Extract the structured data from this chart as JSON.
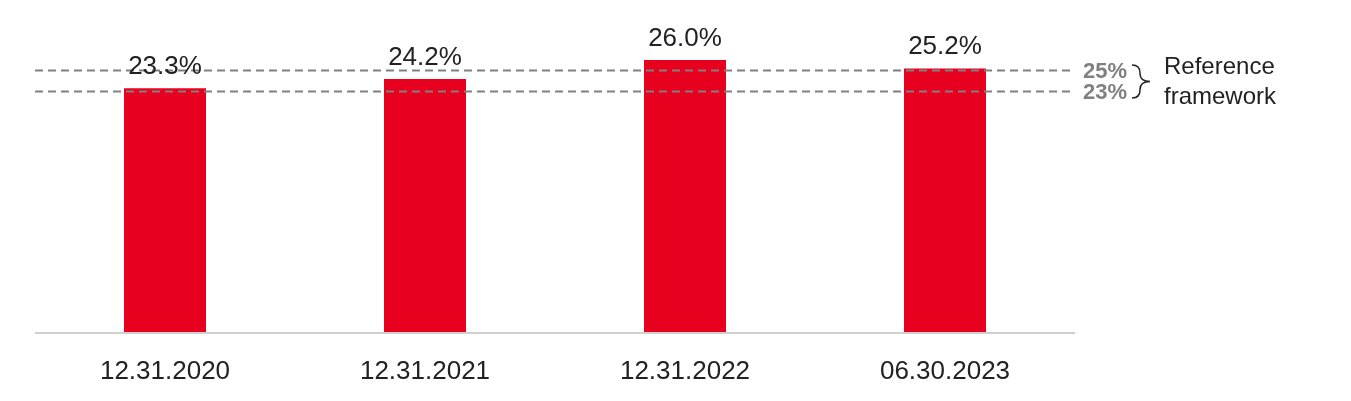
{
  "chart_data": {
    "type": "bar",
    "categories": [
      "12.31.2020",
      "12.31.2021",
      "12.31.2022",
      "06.30.2023"
    ],
    "values": [
      23.3,
      24.2,
      26.0,
      25.2
    ],
    "value_labels": [
      "23.3%",
      "24.2%",
      "26.0%",
      "25.2%"
    ],
    "color": "#e8001f",
    "ref_lines": [
      {
        "axis": "y",
        "value": 25,
        "label": "25%",
        "color": "#808080",
        "line_style": "dashed"
      },
      {
        "axis": "y",
        "value": 23,
        "label": "23%",
        "color": "#808080",
        "line_style": "dashed"
      }
    ],
    "annotations": [
      "Reference framework"
    ]
  }
}
